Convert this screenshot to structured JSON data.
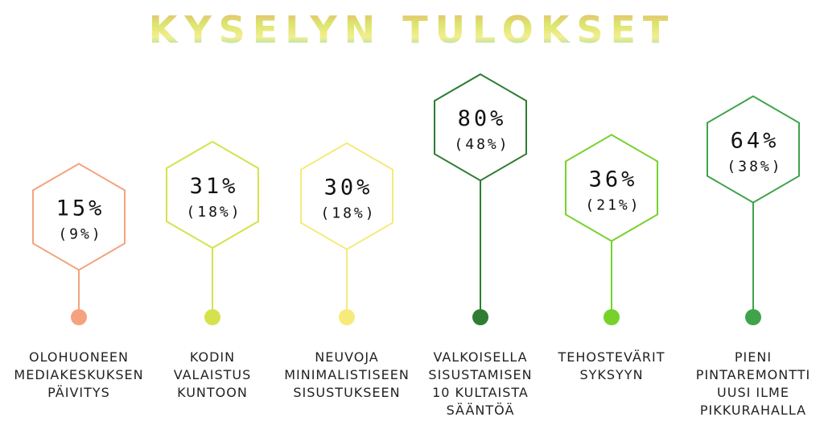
{
  "title": "KYSELYN TULOKSET",
  "colors": {
    "title_gradient": [
      "#f4a97a",
      "#d9e36a",
      "#f3ee8e",
      "#7fd7c8"
    ],
    "timeline_gradient": [
      "#f9b8c8",
      "#f5e0a8",
      "#a9e9f0"
    ]
  },
  "chart_data": {
    "type": "bar",
    "categories": [
      "OLOHUONEEN\nMEDIAKESKUKSEN\nPÄIVITYS",
      "KODIN\nVALAISTUS\nKUNTOON",
      "NEUVOJA\nMINIMALISTISEEN\nSISUSTUKSEEN",
      "VALKOISELLA\nSISUSTAMISEN\n10 KULTAISTA\nSÄÄNTÖÄ",
      "TEHOSTEVÄRIT\nSYKSYYN",
      "PIENI\nPINTAREMONTTI\nUUSI ILME\nPIKKURAHALLA"
    ],
    "values": [
      15,
      31,
      30,
      80,
      36,
      64
    ],
    "value_labels": [
      "15%",
      "31%",
      "30%",
      "80%",
      "36%",
      "64%"
    ],
    "secondary_labels": [
      "(9%)",
      "(18%)",
      "(18%)",
      "(48%)",
      "(21%)",
      "(38%)"
    ],
    "colors": [
      "#f5a27e",
      "#d5e24e",
      "#f6ea7a",
      "#2e7d32",
      "#76d22b",
      "#3fa34a"
    ],
    "ylim": [
      0,
      100
    ]
  }
}
